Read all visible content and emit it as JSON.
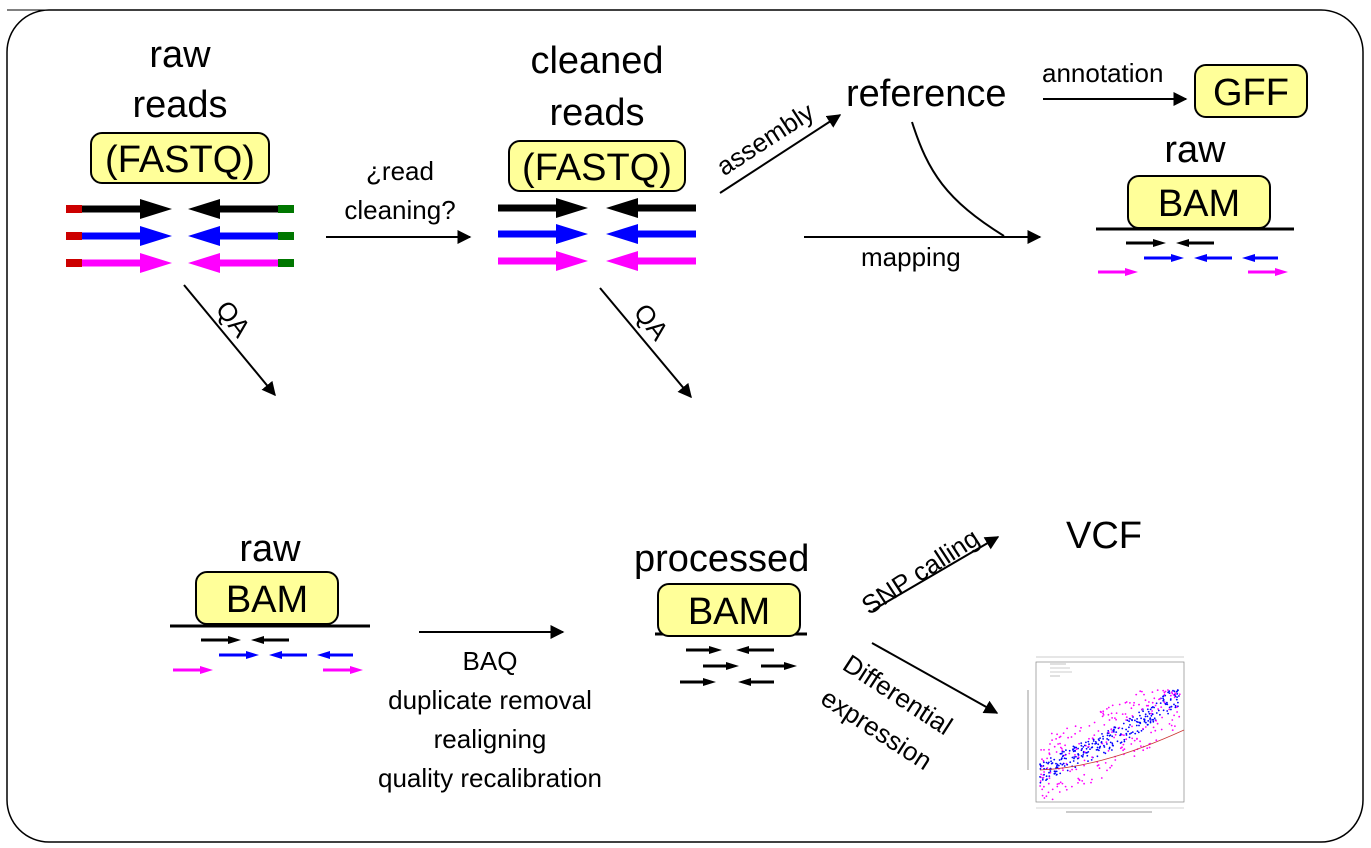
{
  "nodes": {
    "raw_reads_line1": "raw",
    "raw_reads_line2": "reads",
    "raw_reads_badge": "(FASTQ)",
    "cleaned_reads_line1": "cleaned",
    "cleaned_reads_line2": "reads",
    "cleaned_reads_badge": "(FASTQ)",
    "reference": "reference",
    "gff_badge": "GFF",
    "raw_bam_top_label": "raw",
    "raw_bam_top_badge": "BAM",
    "raw_bam_bottom_label": "raw",
    "raw_bam_bottom_badge": "BAM",
    "processed_label": "processed",
    "processed_badge": "BAM",
    "vcf": "VCF"
  },
  "edges": {
    "read_cleaning_line1": "¿read",
    "read_cleaning_line2": "cleaning?",
    "assembly": "assembly",
    "annotation": "annotation",
    "mapping": "mapping",
    "qa_left": "QA",
    "qa_right": "QA",
    "baq_steps": [
      "BAQ",
      "duplicate removal",
      "realigning",
      "quality recalibration"
    ],
    "snp_calling": "SNP calling",
    "differential_line1": "Differential",
    "differential_line2": "expression"
  },
  "colors": {
    "badge_fill": "#ffff99",
    "read_black": "#000000",
    "read_blue": "#0000ff",
    "read_magenta": "#ff00ff",
    "adapter_red": "#cc0000",
    "adapter_green": "#007700"
  }
}
